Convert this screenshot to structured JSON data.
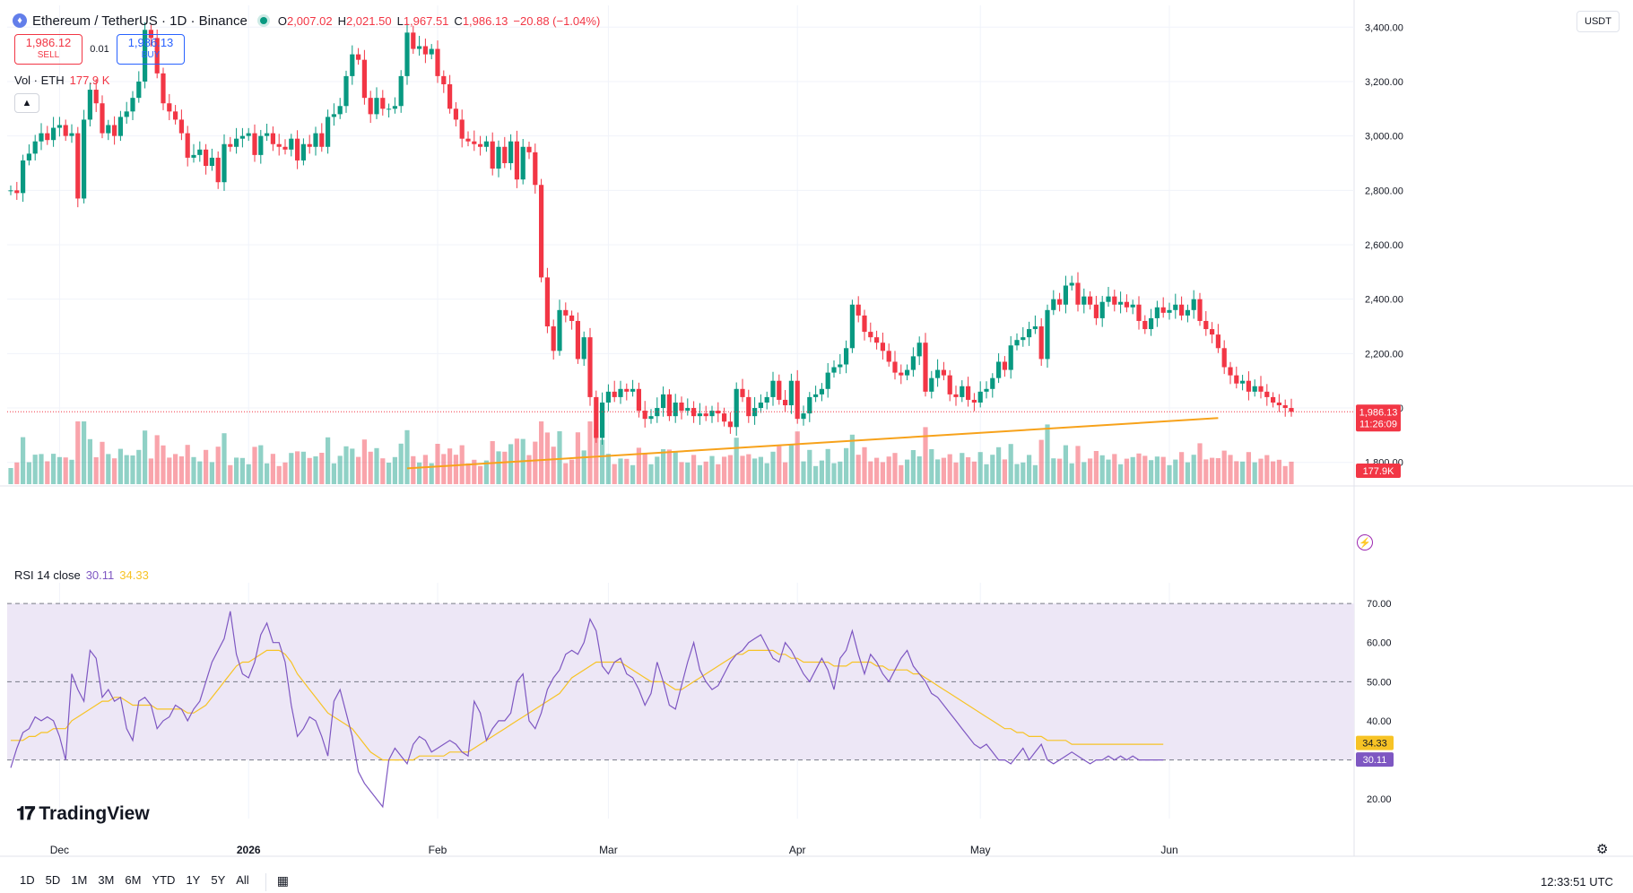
{
  "header": {
    "symbol": "Ethereum / TetherUS · 1D · Binance",
    "open_label": "O",
    "open": "2,007.02",
    "high_label": "H",
    "high": "2,021.50",
    "low_label": "L",
    "low": "1,967.51",
    "close_label": "C",
    "close": "1,986.13",
    "change": "−20.88 (−1.04%)"
  },
  "trade": {
    "sell_price": "1,986.12",
    "sell_label": "SELL",
    "spread": "0.01",
    "buy_price": "1,986.13",
    "buy_label": "BUY"
  },
  "volume_legend": {
    "label": "Vol · ETH",
    "value": "177.9 K"
  },
  "rsi_legend": {
    "label": "RSI 14 close",
    "rsi": "30.11",
    "ma": "34.33"
  },
  "currency_button": "USDT",
  "timeframes": [
    "1D",
    "5D",
    "1M",
    "3M",
    "6M",
    "YTD",
    "1Y",
    "5Y",
    "All"
  ],
  "clock": "12:33:51 UTC",
  "brand": "TradingView",
  "colors": {
    "up": "#089981",
    "down": "#f23645",
    "rsi": "#7e57c2",
    "rsi_ma": "#f7c325",
    "trendline": "#f7a21b",
    "background_band": "#ede7f6"
  },
  "chart_data": [
    {
      "type": "candlestick",
      "title": "Ethereum / TetherUS · 1D · Binance",
      "ylim": [
        1720,
        3480
      ],
      "yticks": [
        1800,
        2000,
        2200,
        2400,
        2600,
        2800,
        3000,
        3200,
        3400
      ],
      "ytick_labels": [
        "1,800.00",
        "2,000.00",
        "2,200.00",
        "2,400.00",
        "2,600.00",
        "2,800.00",
        "3,000.00",
        "3,200.00",
        "3,400.00"
      ],
      "xaxis_labels": [
        {
          "label": "Dec",
          "bar": 8
        },
        {
          "label": "2026",
          "bar": 39
        },
        {
          "label": "Feb",
          "bar": 70
        },
        {
          "label": "Mar",
          "bar": 98
        },
        {
          "label": "Apr",
          "bar": 129
        },
        {
          "label": "May",
          "bar": 159
        },
        {
          "label": "Jun",
          "bar": 190
        }
      ],
      "last_price": {
        "value": 1986.13,
        "label": "1,986.13",
        "countdown": "11:26:09"
      },
      "volume_last_label": "177.9K",
      "trendline": {
        "from_bar": 65,
        "from_price": 1778,
        "to_bar": 198,
        "to_price": 1963
      },
      "close": [
        2800,
        2790,
        2910,
        2935,
        2980,
        3010,
        2985,
        3030,
        3040,
        3000,
        3010,
        2770,
        3060,
        3170,
        3120,
        3010,
        3040,
        3000,
        3070,
        3090,
        3140,
        3200,
        3390,
        3360,
        3230,
        3120,
        3090,
        3060,
        3010,
        2920,
        2930,
        2950,
        2890,
        2920,
        2830,
        2970,
        2960,
        2990,
        3000,
        3010,
        2930,
        3000,
        3010,
        2970,
        2960,
        2950,
        2990,
        2910,
        2970,
        2960,
        3010,
        2960,
        3070,
        3080,
        3110,
        3220,
        3300,
        3280,
        3140,
        3080,
        3140,
        3100,
        3100,
        3110,
        3220,
        3380,
        3320,
        3330,
        3300,
        3320,
        3220,
        3190,
        3100,
        3060,
        2990,
        2980,
        2970,
        2960,
        2980,
        2880,
        2960,
        2900,
        2980,
        2840,
        2960,
        2940,
        2820,
        2480,
        2300,
        2210,
        2360,
        2340,
        2320,
        2180,
        2260,
        2040,
        1890,
        2020,
        2060,
        2040,
        2070,
        2060,
        2070,
        1990,
        1960,
        1970,
        2000,
        2050,
        1970,
        2020,
        1990,
        2000,
        1970,
        1980,
        1970,
        1990,
        1980,
        1950,
        1930,
        2070,
        2040,
        1970,
        2000,
        2020,
        2040,
        2100,
        2030,
        2010,
        2100,
        1960,
        1980,
        2040,
        2050,
        2070,
        2130,
        2150,
        2160,
        2220,
        2380,
        2340,
        2280,
        2260,
        2240,
        2210,
        2170,
        2130,
        2120,
        2140,
        2190,
        2240,
        2060,
        2110,
        2140,
        2120,
        2050,
        2040,
        2080,
        2030,
        2020,
        2060,
        2070,
        2110,
        2170,
        2140,
        2230,
        2250,
        2260,
        2290,
        2300,
        2180,
        2360,
        2400,
        2380,
        2450,
        2460,
        2380,
        2410,
        2380,
        2330,
        2390,
        2410,
        2380,
        2390,
        2370,
        2380,
        2320,
        2290,
        2330,
        2370,
        2350,
        2360,
        2380,
        2340,
        2360,
        2400,
        2320,
        2290,
        2270,
        2220,
        2150,
        2120,
        2090,
        2100,
        2060,
        2080,
        2060,
        2040,
        2020,
        2010,
        2000,
        1986
      ]
    },
    {
      "type": "line",
      "title": "RSI 14 close",
      "ylim": [
        15,
        73
      ],
      "yticks": [
        20,
        30,
        40,
        50,
        60,
        70
      ],
      "ytick_labels": [
        "20.00",
        "30.00",
        "40.00",
        "50.00",
        "60.00",
        "70.00"
      ],
      "band": [
        30,
        70
      ],
      "midline": 50,
      "last_values": {
        "rsi": "30.11",
        "ma": "34.33"
      },
      "series": [
        {
          "name": "RSI",
          "values": [
            28,
            33,
            37,
            38,
            41,
            40,
            41,
            40,
            36,
            30,
            52,
            48,
            45,
            58,
            56,
            46,
            48,
            45,
            46,
            38,
            35,
            45,
            46,
            44,
            38,
            40,
            41,
            44,
            43,
            40,
            43,
            45,
            50,
            55,
            58,
            61,
            68,
            57,
            52,
            51,
            55,
            62,
            65,
            60,
            60,
            55,
            44,
            36,
            38,
            41,
            40,
            36,
            31,
            45,
            48,
            42,
            36,
            27,
            24,
            22,
            20,
            18,
            30,
            33,
            31,
            29,
            34,
            36,
            35,
            32,
            33,
            34,
            35,
            34,
            32,
            31,
            45,
            42,
            35,
            38,
            40,
            40,
            42,
            50,
            52,
            40,
            38,
            42,
            48,
            51,
            53,
            57,
            58,
            57,
            60,
            66,
            63,
            54,
            52,
            55,
            56,
            52,
            51,
            48,
            44,
            47,
            55,
            50,
            44,
            43,
            49,
            55,
            60,
            53,
            50,
            48,
            49,
            52,
            55,
            57,
            58,
            60,
            61,
            62,
            59,
            56,
            55,
            60,
            58,
            55,
            52,
            50,
            53,
            56,
            53,
            48,
            56,
            58,
            63,
            57,
            52,
            57,
            55,
            52,
            50,
            53,
            56,
            58,
            54,
            52,
            50,
            47,
            46,
            44,
            42,
            40,
            38,
            36,
            34,
            33,
            34,
            32,
            30,
            30,
            29,
            31,
            33,
            30,
            32,
            34,
            30,
            29,
            30,
            31,
            32,
            31,
            30,
            29,
            30,
            30,
            31,
            30,
            31,
            30,
            31,
            30,
            30,
            30,
            30,
            30
          ]
        },
        {
          "name": "RSI-MA",
          "values": [
            35,
            35,
            35,
            36,
            36,
            37,
            37,
            38,
            38,
            38,
            40,
            41,
            42,
            43,
            44,
            45,
            45,
            46,
            46,
            45,
            44,
            44,
            44,
            44,
            43,
            43,
            43,
            43,
            43,
            42,
            42,
            43,
            44,
            46,
            48,
            50,
            52,
            54,
            55,
            55,
            56,
            57,
            58,
            58,
            58,
            57,
            55,
            52,
            50,
            48,
            46,
            44,
            42,
            41,
            40,
            39,
            38,
            36,
            34,
            32,
            31,
            30,
            30,
            30,
            30,
            30,
            30,
            31,
            31,
            31,
            31,
            31,
            32,
            32,
            32,
            32,
            33,
            34,
            35,
            36,
            37,
            38,
            39,
            40,
            41,
            42,
            43,
            44,
            45,
            46,
            47,
            49,
            51,
            52,
            53,
            54,
            55,
            55,
            55,
            55,
            55,
            54,
            53,
            52,
            51,
            50,
            50,
            50,
            49,
            48,
            48,
            49,
            50,
            51,
            52,
            53,
            54,
            55,
            56,
            57,
            57,
            58,
            58,
            58,
            58,
            58,
            57,
            57,
            56,
            56,
            55,
            55,
            55,
            55,
            55,
            54,
            54,
            54,
            55,
            55,
            55,
            55,
            54,
            54,
            53,
            53,
            53,
            53,
            52,
            52,
            51,
            50,
            49,
            48,
            47,
            46,
            45,
            44,
            43,
            42,
            41,
            40,
            39,
            38,
            38,
            37,
            37,
            36,
            36,
            36,
            35,
            35,
            35,
            35,
            34,
            34,
            34,
            34,
            34,
            34,
            34,
            34,
            34,
            34,
            34,
            34,
            34,
            34,
            34,
            34
          ]
        }
      ]
    }
  ]
}
